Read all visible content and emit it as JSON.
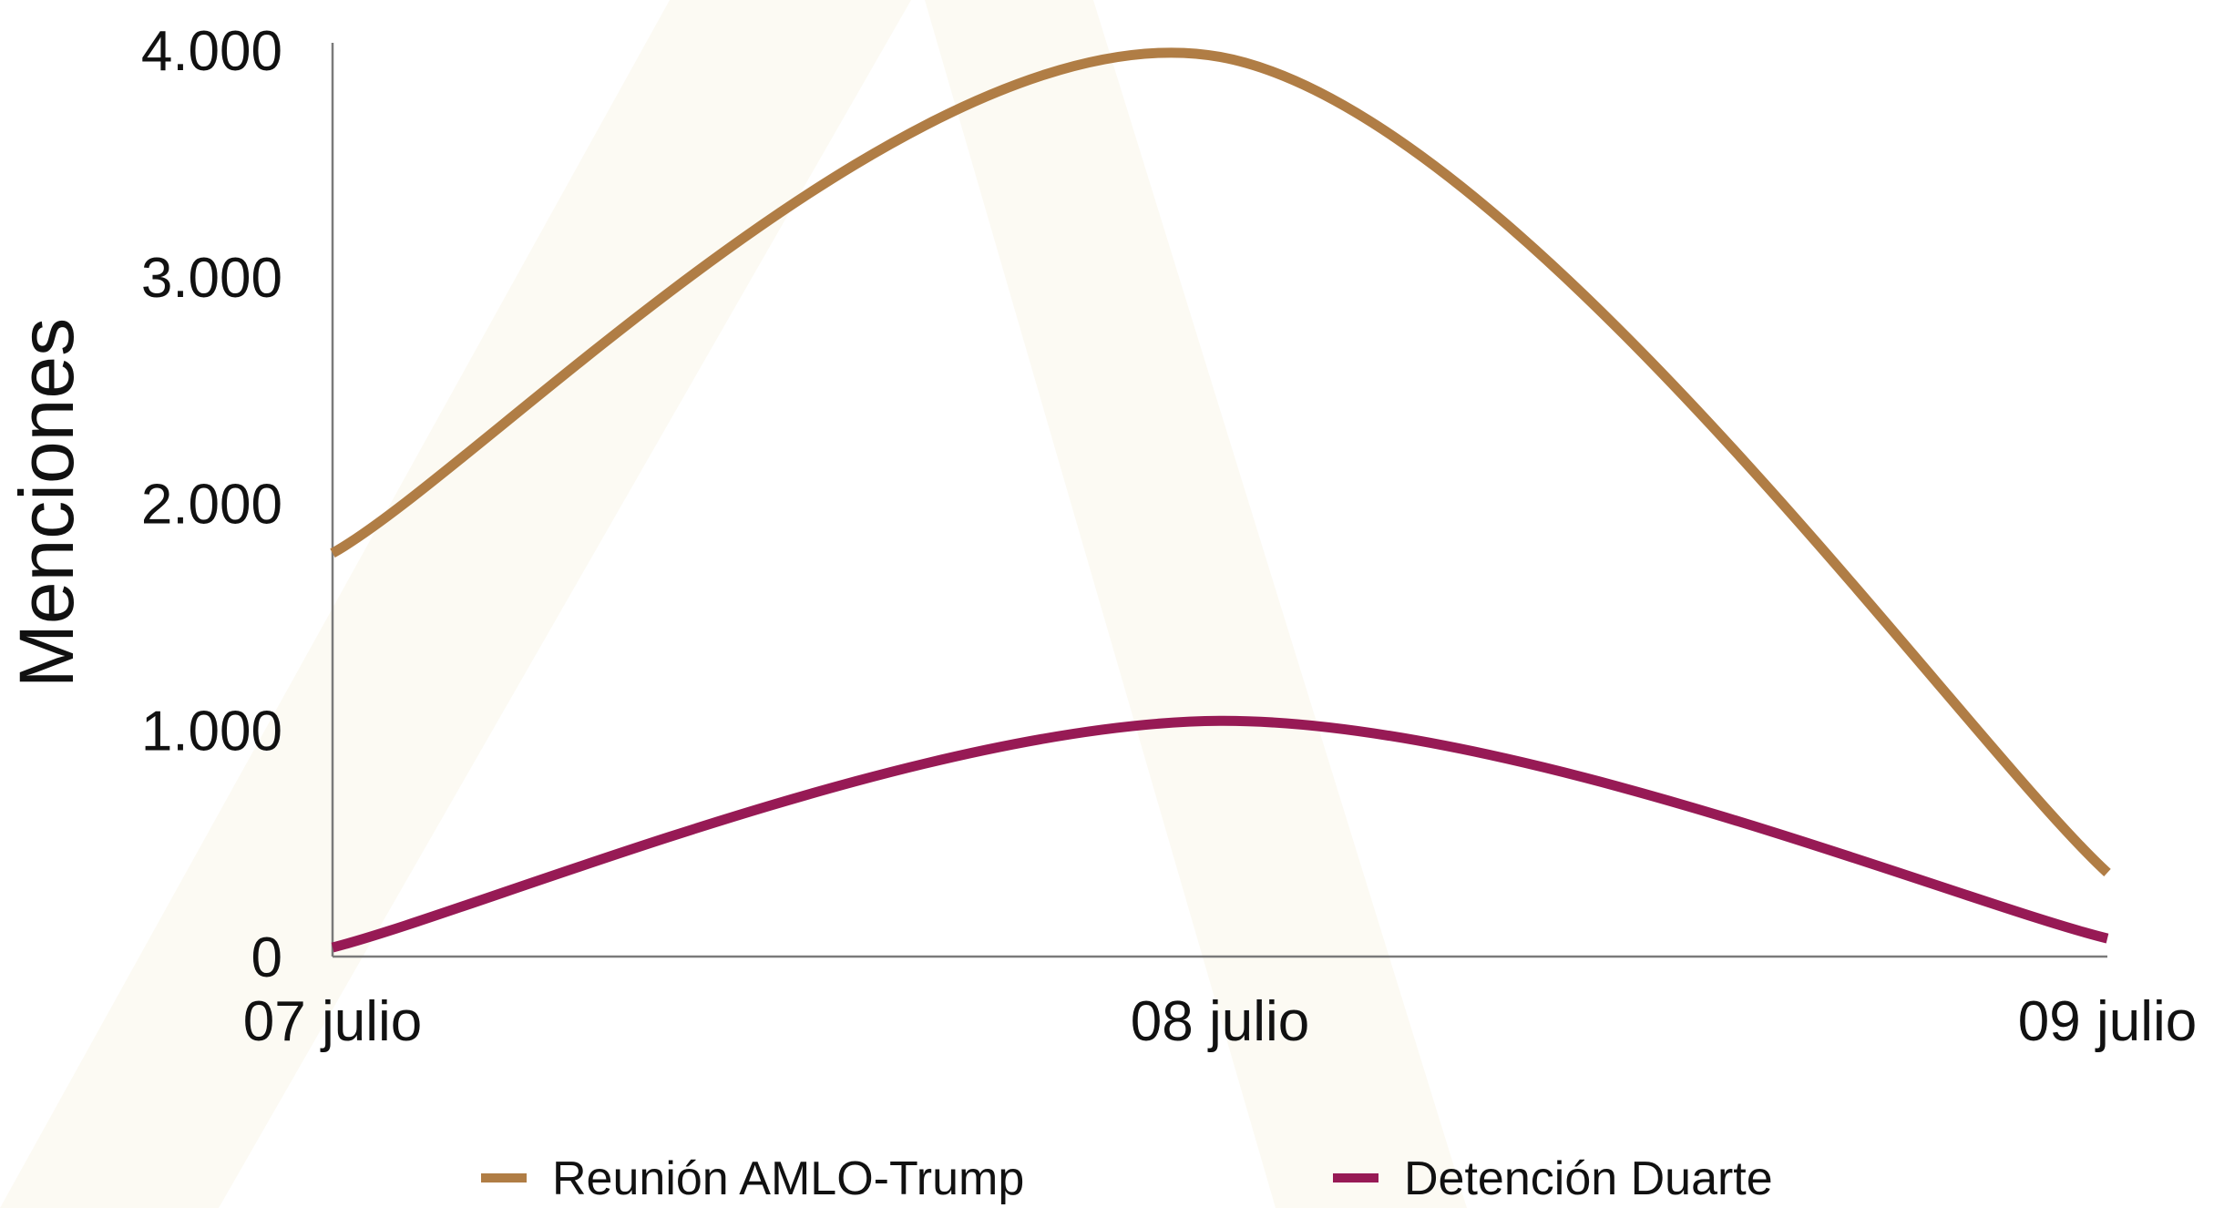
{
  "chart_data": {
    "type": "line",
    "smooth": true,
    "title": "",
    "xlabel": "",
    "ylabel": "Menciones",
    "categories": [
      "07 julio",
      "08 julio",
      "09 julio"
    ],
    "ylim": [
      0,
      4000
    ],
    "yticks": [
      0,
      1000,
      2000,
      3000,
      4000
    ],
    "ytick_labels": [
      "0",
      "1.000",
      "2.000",
      "3.000",
      "4.000"
    ],
    "grid": false,
    "legend_position": "bottom",
    "series": [
      {
        "name": "Reunión AMLO-Trump",
        "color": "#b07d45",
        "values": [
          1780,
          3970,
          370
        ]
      },
      {
        "name": "Detención Duarte",
        "color": "#971a55",
        "values": [
          40,
          1040,
          80
        ]
      }
    ],
    "background_watermark_color": "#fcf9f2",
    "axis_color": "#7a7a7a"
  }
}
